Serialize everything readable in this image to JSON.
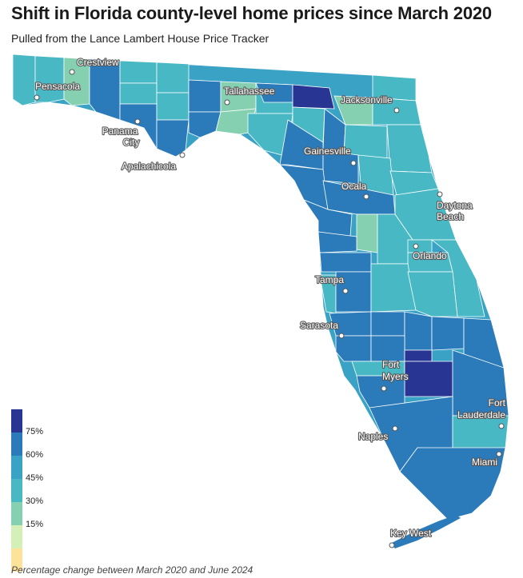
{
  "title": "Shift in Florida county-level home prices since March 2020",
  "subtitle": "Pulled from the Lance Lambert House Price Tracker",
  "footnote": "Percentage change between March 2020 and June 2024",
  "legend": {
    "colors": [
      "#283593",
      "#2b7bba",
      "#3aa3c5",
      "#47b8c4",
      "#86d0b2",
      "#d4efb8",
      "#fde29a"
    ],
    "ticks": [
      "75%",
      "60%",
      "45%",
      "30%",
      "15%"
    ]
  },
  "cities": [
    {
      "name": "Crestview"
    },
    {
      "name": "Pensacola"
    },
    {
      "name": "Tallahassee"
    },
    {
      "name": "Jacksonville"
    },
    {
      "name": "Panama City"
    },
    {
      "name": "Apalachicola"
    },
    {
      "name": "Gainesville"
    },
    {
      "name": "Ocala"
    },
    {
      "name": "Daytona Beach"
    },
    {
      "name": "Orlando"
    },
    {
      "name": "Tampa"
    },
    {
      "name": "Sarasota"
    },
    {
      "name": "Fort Myers"
    },
    {
      "name": "Naples"
    },
    {
      "name": "Fort Lauderdale"
    },
    {
      "name": "Miami"
    },
    {
      "name": "Key West"
    }
  ]
}
